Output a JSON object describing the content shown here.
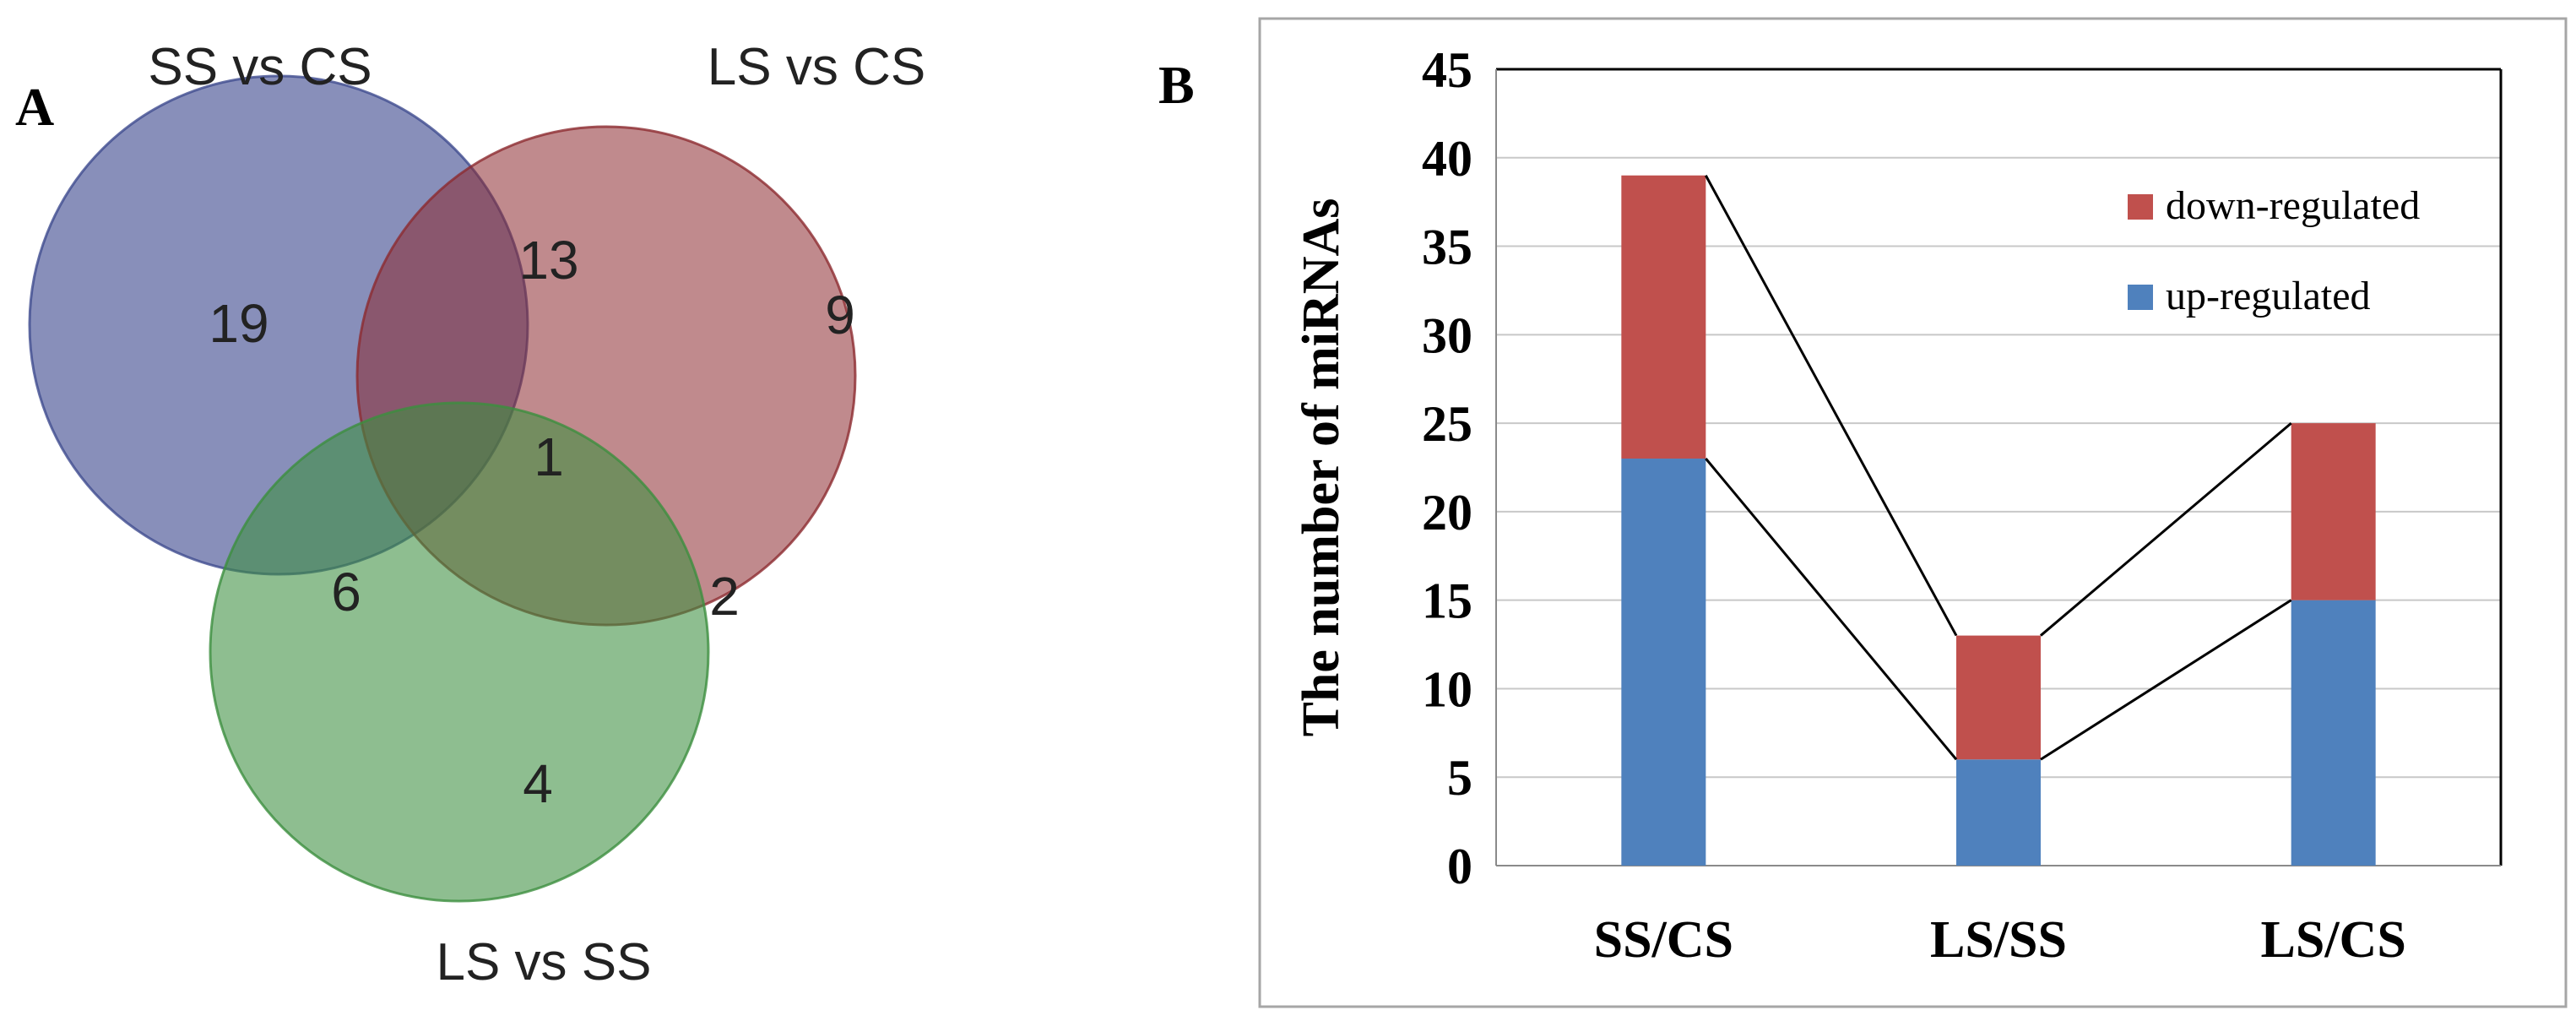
{
  "venn": {
    "panel_label": "A",
    "sets": [
      {
        "name": "SS vs CS",
        "color": "#3f4b8f"
      },
      {
        "name": "LS vs CS",
        "color": "#8c2a30"
      },
      {
        "name": "LS vs SS",
        "color": "#3c8f3f"
      }
    ],
    "regions": {
      "ss_cs_only": "19",
      "ls_cs_only": "9",
      "ls_ss_only": "4",
      "ss_cs_and_ls_cs": "13",
      "ss_cs_and_ls_ss": "6",
      "ls_cs_and_ls_ss": "2",
      "all_three": "1"
    }
  },
  "chart_data": {
    "panel_label": "B",
    "type": "bar",
    "stacked": true,
    "categories": [
      "SS/CS",
      "LS/SS",
      "LS/CS"
    ],
    "series": [
      {
        "name": "up-regulated",
        "values": [
          23,
          6,
          15
        ],
        "color": "#4f81bd"
      },
      {
        "name": "down-regulated",
        "values": [
          16,
          7,
          10
        ],
        "color": "#c0504d"
      }
    ],
    "ylabel": "The number of miRNAs",
    "xlabel": "",
    "ylim": [
      0,
      45
    ],
    "yticks": [
      "0",
      "5",
      "10",
      "15",
      "20",
      "25",
      "30",
      "35",
      "40",
      "45"
    ],
    "grid": true,
    "legend_position": "top-right",
    "legend_order": [
      "down-regulated",
      "up-regulated"
    ],
    "connector_lines": true
  }
}
